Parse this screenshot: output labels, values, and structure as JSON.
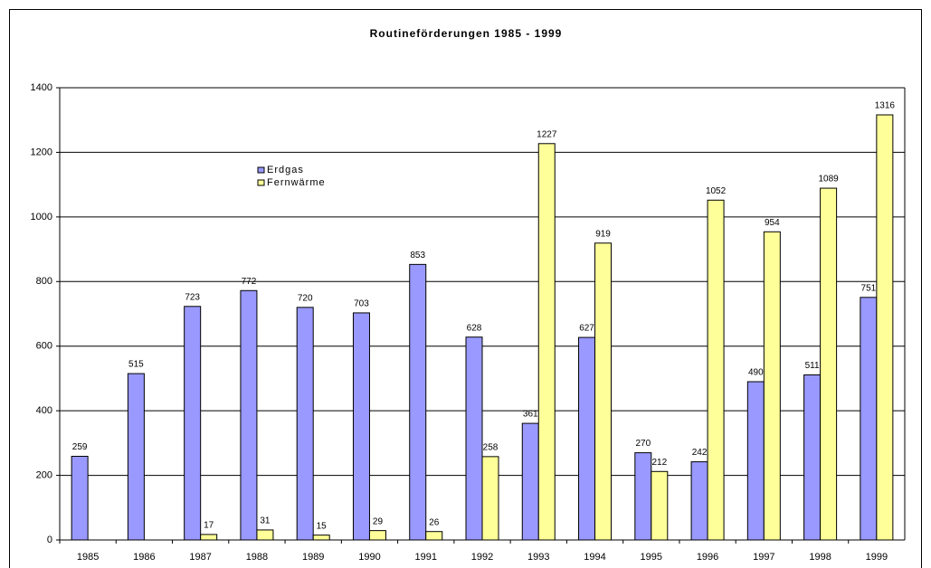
{
  "chart_data": {
    "type": "bar",
    "title": "Routineförderungen 1985 - 1999",
    "categories": [
      "1985",
      "1986",
      "1987",
      "1988",
      "1989",
      "1990",
      "1991",
      "1992",
      "1993",
      "1994",
      "1995",
      "1996",
      "1997",
      "1998",
      "1999"
    ],
    "series": [
      {
        "name": "Erdgas",
        "color": "#9999ff",
        "values": [
          259,
          515,
          723,
          772,
          720,
          703,
          853,
          628,
          361,
          627,
          270,
          242,
          490,
          511,
          751
        ]
      },
      {
        "name": "Fernwärme",
        "color": "#ffff99",
        "values": [
          null,
          null,
          17,
          31,
          15,
          29,
          26,
          258,
          1227,
          919,
          212,
          1052,
          954,
          1089,
          1316
        ]
      }
    ],
    "ylim": [
      0,
      1400
    ],
    "yticks": [
      0,
      200,
      400,
      600,
      800,
      1000,
      1200,
      1400
    ],
    "grid": true,
    "legend": "upper left"
  }
}
